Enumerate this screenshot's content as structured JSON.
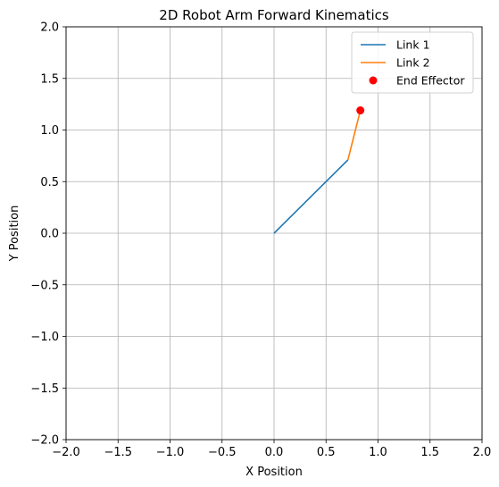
{
  "chart_data": {
    "type": "line",
    "title": "2D Robot Arm Forward Kinematics",
    "xlabel": "X Position",
    "ylabel": "Y Position",
    "xlim": [
      -2.0,
      2.0
    ],
    "ylim": [
      -2.0,
      2.0
    ],
    "xticks": [
      -2.0,
      -1.5,
      -1.0,
      -0.5,
      0.0,
      0.5,
      1.0,
      1.5,
      2.0
    ],
    "yticks": [
      -2.0,
      -1.5,
      -1.0,
      -0.5,
      0.0,
      0.5,
      1.0,
      1.5,
      2.0
    ],
    "xtick_labels": [
      "−2.0",
      "−1.5",
      "−1.0",
      "−0.5",
      "0.0",
      "0.5",
      "1.0",
      "1.5",
      "2.0"
    ],
    "ytick_labels": [
      "−2.0",
      "−1.5",
      "−1.0",
      "−0.5",
      "0.0",
      "0.5",
      "1.0",
      "1.5",
      "2.0"
    ],
    "grid": true,
    "legend_position": "top-right",
    "series": [
      {
        "name": "Link 1",
        "kind": "line",
        "color": "#1f77b4",
        "x": [
          0.0,
          0.71
        ],
        "y": [
          0.0,
          0.71
        ]
      },
      {
        "name": "Link 2",
        "kind": "line",
        "color": "#ff7f0e",
        "x": [
          0.71,
          0.83
        ],
        "y": [
          0.71,
          1.19
        ]
      },
      {
        "name": "End Effector",
        "kind": "marker",
        "color": "#ff0000",
        "x": [
          0.83
        ],
        "y": [
          1.19
        ]
      }
    ]
  }
}
